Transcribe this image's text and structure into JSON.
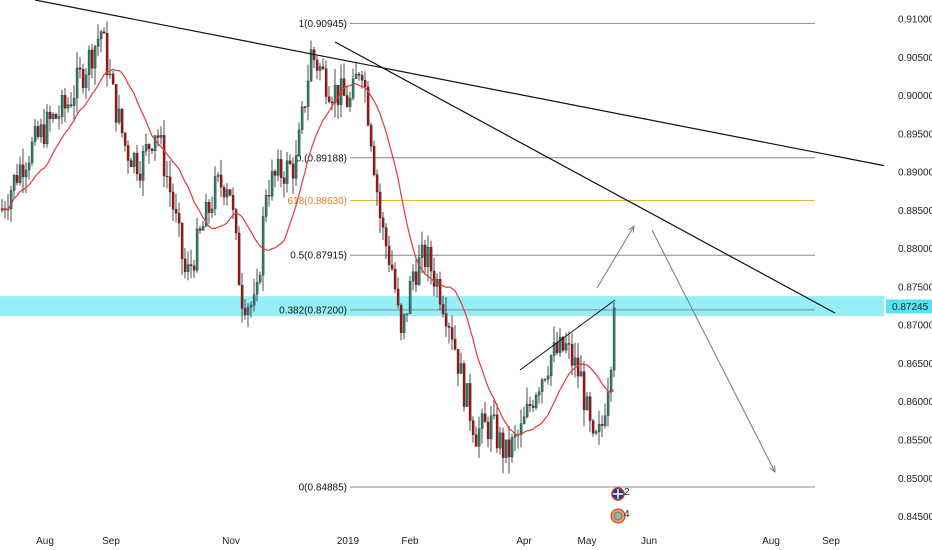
{
  "chart_data": {
    "type": "candlestick",
    "symbol_hint": "",
    "x_tick_labels": [
      "Aug",
      "Sep",
      "Nov",
      "2019",
      "Feb",
      "Apr",
      "May",
      "Jun",
      "Aug",
      "Sep"
    ],
    "y_tick_labels": [
      "0.91000",
      "0.90500",
      "0.90000",
      "0.89500",
      "0.89000",
      "0.88500",
      "0.88000",
      "0.87500",
      "0.87000",
      "0.86500",
      "0.86000",
      "0.85500",
      "0.85000",
      "0.84500"
    ],
    "ylim": [
      0.8435,
      0.9125
    ],
    "last_price": "0.87245",
    "support_zone": [
      0.8712,
      0.8738
    ],
    "colors": {
      "up": "#2e7d6b",
      "down": "#a31515",
      "wick": "#222222",
      "ma": "#e53935",
      "zone": "#40e0f0",
      "fib_line": "#888888",
      "fib_618": "#f0b040",
      "trend": "#111111",
      "arrow": "#777777"
    },
    "fib_levels": [
      {
        "label": "1(0.90945)",
        "value": 0.90945
      },
      {
        "label": "0.(0.89188)",
        "value": 0.89188
      },
      {
        "label": "618(0.88630)",
        "value": 0.8863
      },
      {
        "label": "0.5(0.87915)",
        "value": 0.87915
      },
      {
        "label": "0.382(0.87200)",
        "value": 0.872
      },
      {
        "label": "0(0.84885)",
        "value": 0.84885
      }
    ],
    "icons": [
      {
        "name": "flag-uk-icon",
        "count": "2"
      },
      {
        "name": "globe-icon",
        "count": "4"
      }
    ]
  }
}
